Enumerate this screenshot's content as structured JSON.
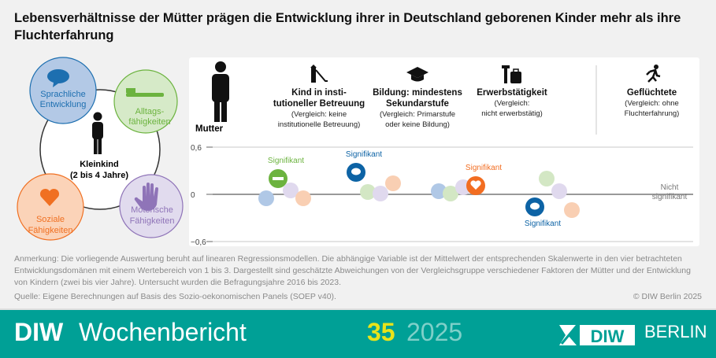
{
  "title": "Lebensverhältnisse der Mütter prägen die Entwicklung ihrer in Deutschland geborenen Kinder mehr als ihre Fluchterfahrung",
  "diagram": {
    "center": {
      "line1": "Kleinkind",
      "line2": "(2 bis 4 Jahre)"
    },
    "domains": [
      {
        "line1": "Sprachliche",
        "line2": "Entwicklung",
        "icon": "speech-bubble-icon",
        "color": "#1d6fb0",
        "fill": "#b3c9e6"
      },
      {
        "line1": "Alltags-",
        "line2": "fähigkeiten",
        "icon": "toothbrush-icon",
        "color": "#6cb33f",
        "fill": "#d6eac8"
      },
      {
        "line1": "Motorische",
        "line2": "Fähigkeiten",
        "icon": "hand-icon",
        "color": "#8f74b8",
        "fill": "#e1dbee"
      },
      {
        "line1": "Soziale",
        "line2": "Fähigkeiten",
        "icon": "heart-icon",
        "color": "#f07022",
        "fill": "#fbd3b8"
      }
    ]
  },
  "mother_label": "Mutter",
  "headers": [
    {
      "title": "Kind in insti-\ntutioneller Betreuung",
      "sub": "(Vergleich: keine\ninstitutionelle Betreuung)",
      "icon": "playground-slide-icon"
    },
    {
      "title": "Bildung: mindestens\nSekundarstufe",
      "sub": "(Vergleich: Primarstufe\noder keine Bildung)",
      "icon": "graduation-cap-icon"
    },
    {
      "title": "Erwerbstätigkeit",
      "sub": "(Vergleich:\nnicht erwerbstätig)",
      "icon": "hammer-briefcase-icon"
    },
    {
      "title": "Geflüchtete",
      "sub": "(Vergleich: ohne\nFluchterfahrung)",
      "icon": "running-person-icon"
    }
  ],
  "chart_data": {
    "type": "scatter",
    "ylim": [
      -0.6,
      0.6
    ],
    "yticks": [
      "0,6",
      "0",
      "−0,6"
    ],
    "ytick_values": [
      0.6,
      0,
      -0.6
    ],
    "categories": [
      "Kind in institutioneller Betreuung",
      "Bildung: mindestens Sekundarstufe",
      "Erwerbstätigkeit",
      "Geflüchtete"
    ],
    "series": [
      {
        "name": "Sprachliche Entwicklung",
        "values": [
          -0.05,
          0.28,
          0.04,
          -0.16
        ],
        "significant": [
          false,
          true,
          false,
          true
        ]
      },
      {
        "name": "Alltagsfähigkeiten",
        "values": [
          0.2,
          0.03,
          0.01,
          0.2
        ],
        "significant": [
          true,
          false,
          false,
          false
        ]
      },
      {
        "name": "Motorische Fähigkeiten",
        "values": [
          0.05,
          0.01,
          0.09,
          0.04
        ],
        "significant": [
          false,
          false,
          false,
          false
        ]
      },
      {
        "name": "Soziale Fähigkeiten",
        "values": [
          -0.05,
          0.14,
          0.11,
          -0.2
        ],
        "significant": [
          false,
          false,
          true,
          false
        ]
      }
    ],
    "annotations": [
      "Signifikant",
      "Signifikant",
      "Signifikant",
      "Signifikant",
      "Nicht signifikant"
    ]
  },
  "note": "Anmerkung: Die vorliegende Auswertung beruht auf linearen Regressionsmodellen. Die abhängige Variable ist der Mittelwert der entsprechenden Skalenwerte in den vier betrachteten Entwicklungsdomänen mit einem Wertebereich von 1 bis 3. Dargestellt sind geschätzte Abweichungen von der Vergleichsgruppe verschiedener Faktoren der Mütter und der Entwicklung von Kindern (zwei bis vier Jahre). Untersucht wurden die Befragungsjahre 2016 bis 2023.",
  "source": "Quelle: Eigene Berechnungen auf Basis des Sozio-oekonomischen Panels (SOEP v40).",
  "copyright": "© DIW Berlin 2025",
  "footer": {
    "diw": "DIW",
    "publication": "Wochenbericht",
    "issue": "35",
    "year": "2025",
    "logo_text": "DIW",
    "berlin": "BERLIN",
    "color": "#00a096"
  }
}
